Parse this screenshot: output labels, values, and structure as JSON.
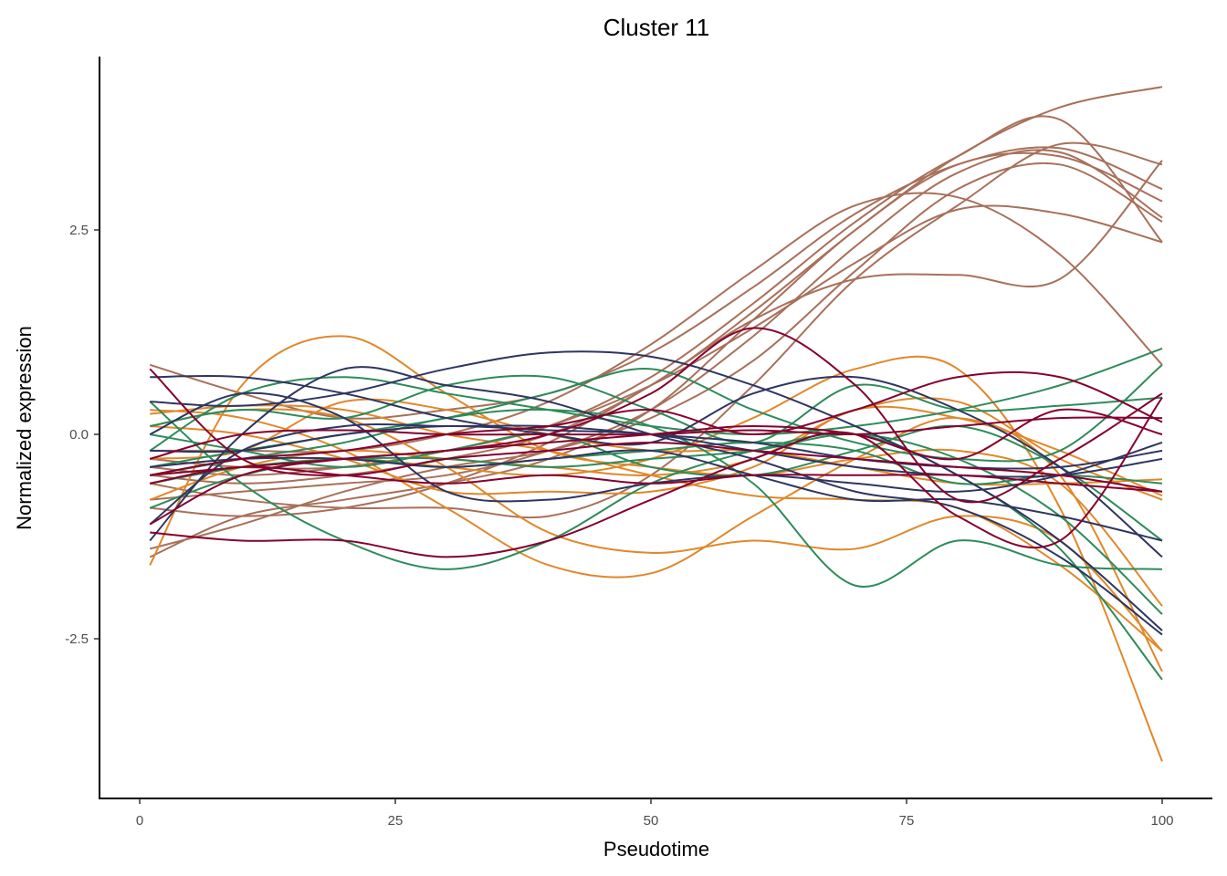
{
  "chart_data": {
    "type": "line",
    "title": "Cluster 11",
    "xlabel": "Pseudotime",
    "ylabel": "Normalized expression",
    "xlim": [
      0,
      100
    ],
    "ylim": [
      -4.3,
      4.4
    ],
    "xticks": [
      "0",
      "25",
      "50",
      "75",
      "100"
    ],
    "xtick_values": [
      0,
      25,
      50,
      75,
      100
    ],
    "yticks": [
      "-2.5",
      "0.0",
      "2.5"
    ],
    "ytick_values": [
      -2.5,
      0,
      2.5
    ],
    "grid": false,
    "legend": "none",
    "colors": {
      "brown": "#A8705A",
      "orange": "#E0882A",
      "green": "#2E8B5A",
      "navy": "#2E3560",
      "crimson": "#85002E"
    },
    "x": [
      1,
      10,
      20,
      30,
      40,
      50,
      60,
      70,
      80,
      90,
      100
    ],
    "series": [
      {
        "color": "brown",
        "values": [
          -0.5,
          -0.6,
          -0.5,
          -0.3,
          0.0,
          0.6,
          1.5,
          2.5,
          3.4,
          4.0,
          4.25
        ]
      },
      {
        "color": "brown",
        "values": [
          -0.3,
          -0.4,
          -0.4,
          -0.2,
          0.1,
          0.7,
          1.6,
          2.6,
          3.4,
          3.85,
          2.35
        ]
      },
      {
        "color": "brown",
        "values": [
          -0.9,
          -1.0,
          -0.9,
          -0.6,
          -0.1,
          0.6,
          1.4,
          1.9,
          1.95,
          1.9,
          3.35
        ]
      },
      {
        "color": "brown",
        "values": [
          -0.2,
          -0.2,
          -0.2,
          0.0,
          0.4,
          1.1,
          2.0,
          2.8,
          2.9,
          2.2,
          0.85
        ]
      },
      {
        "color": "brown",
        "values": [
          -0.4,
          -0.5,
          -0.4,
          -0.2,
          0.1,
          0.6,
          1.3,
          2.1,
          2.75,
          2.7,
          2.35
        ]
      },
      {
        "color": "brown",
        "values": [
          -1.5,
          -1.0,
          -0.8,
          -0.6,
          -0.3,
          0.3,
          1.4,
          2.5,
          3.3,
          3.4,
          2.85
        ]
      },
      {
        "color": "brown",
        "values": [
          0.85,
          0.5,
          0.2,
          0.3,
          0.5,
          1.0,
          1.8,
          2.7,
          3.3,
          3.5,
          3.0
        ]
      },
      {
        "color": "brown",
        "values": [
          -0.8,
          -0.7,
          -0.6,
          -0.5,
          -0.2,
          0.3,
          1.2,
          2.3,
          3.2,
          3.45,
          2.65
        ]
      },
      {
        "color": "brown",
        "values": [
          -1.4,
          -1.1,
          -0.7,
          -0.4,
          -0.2,
          0.2,
          0.9,
          2.0,
          3.0,
          3.3,
          2.6
        ]
      },
      {
        "color": "brown",
        "values": [
          -0.6,
          -0.8,
          -0.9,
          -0.9,
          -1.0,
          -0.5,
          0.6,
          1.9,
          2.8,
          3.55,
          3.3
        ]
      },
      {
        "color": "orange",
        "values": [
          -1.6,
          0.6,
          1.2,
          0.5,
          -0.2,
          -0.4,
          -0.5,
          -0.3,
          -0.2,
          -0.6,
          -2.1
        ]
      },
      {
        "color": "orange",
        "values": [
          0.3,
          0.2,
          -0.2,
          -0.9,
          -1.6,
          -1.7,
          -1.0,
          -0.3,
          0.2,
          -0.5,
          -2.9
        ]
      },
      {
        "color": "orange",
        "values": [
          0.1,
          0.3,
          0.2,
          -0.4,
          -1.2,
          -1.45,
          -1.3,
          -1.4,
          -1.0,
          -1.3,
          -2.65
        ]
      },
      {
        "color": "orange",
        "values": [
          -0.5,
          -0.4,
          -0.3,
          -0.4,
          -0.5,
          -0.3,
          0.2,
          0.8,
          0.8,
          -0.9,
          -4.0
        ]
      },
      {
        "color": "orange",
        "values": [
          -0.8,
          -0.4,
          -0.2,
          -0.3,
          -0.4,
          -0.5,
          -0.3,
          0.3,
          0.4,
          -0.3,
          -0.8
        ]
      },
      {
        "color": "orange",
        "values": [
          0.25,
          0.35,
          0.3,
          0.0,
          -0.2,
          -0.5,
          -0.75,
          -0.8,
          -0.9,
          -1.6,
          -2.65
        ]
      },
      {
        "color": "orange",
        "values": [
          -0.3,
          -0.2,
          0.4,
          0.3,
          0.0,
          -0.2,
          -0.2,
          -0.4,
          -0.6,
          -0.6,
          -0.55
        ]
      },
      {
        "color": "orange",
        "values": [
          0.1,
          0.0,
          -0.3,
          -0.7,
          -0.7,
          -0.7,
          -0.4,
          0.3,
          0.2,
          -0.2,
          -0.75
        ]
      },
      {
        "color": "green",
        "values": [
          0.4,
          -0.6,
          -1.3,
          -1.65,
          -1.3,
          -0.6,
          -0.2,
          0.0,
          -0.5,
          -1.4,
          -3.0
        ]
      },
      {
        "color": "green",
        "values": [
          -0.5,
          -0.3,
          -0.1,
          0.2,
          0.3,
          0.1,
          -0.6,
          -1.85,
          -1.3,
          -1.6,
          -1.65
        ]
      },
      {
        "color": "green",
        "values": [
          -0.2,
          0.5,
          0.7,
          0.5,
          0.3,
          0.1,
          0.0,
          0.1,
          0.3,
          0.6,
          1.05
        ]
      },
      {
        "color": "green",
        "values": [
          -0.4,
          -0.2,
          0.0,
          0.2,
          0.5,
          0.8,
          0.3,
          -0.1,
          -0.3,
          -0.2,
          0.85
        ]
      },
      {
        "color": "green",
        "values": [
          0.1,
          0.3,
          0.2,
          0.6,
          0.7,
          0.3,
          -0.1,
          0.6,
          0.3,
          0.35,
          0.45
        ]
      },
      {
        "color": "green",
        "values": [
          -0.6,
          -0.4,
          -0.3,
          -0.3,
          -0.4,
          -0.3,
          -0.2,
          0.0,
          -0.3,
          -1.0,
          -2.2
        ]
      },
      {
        "color": "green",
        "values": [
          0.0,
          -0.2,
          -0.4,
          -0.2,
          0.0,
          -0.4,
          -0.5,
          -0.2,
          0.1,
          -0.4,
          -1.3
        ]
      },
      {
        "color": "green",
        "values": [
          -0.9,
          -0.5,
          -0.3,
          -0.4,
          -0.3,
          -0.2,
          -0.1,
          -0.2,
          -0.6,
          -0.5,
          -0.6
        ]
      },
      {
        "color": "navy",
        "values": [
          0.4,
          0.35,
          0.5,
          0.8,
          1.0,
          0.95,
          0.6,
          0.1,
          -0.5,
          -1.3,
          -2.4
        ]
      },
      {
        "color": "navy",
        "values": [
          0.7,
          0.7,
          0.5,
          0.2,
          0.0,
          -0.1,
          0.5,
          0.7,
          0.3,
          -0.4,
          -1.5
        ]
      },
      {
        "color": "navy",
        "values": [
          -1.3,
          0.0,
          0.8,
          0.6,
          0.4,
          0.0,
          -0.3,
          -0.7,
          -0.9,
          -1.5,
          -2.45
        ]
      },
      {
        "color": "navy",
        "values": [
          -0.2,
          -0.2,
          0.0,
          0.1,
          0.05,
          0.0,
          -0.2,
          -0.4,
          -0.5,
          -0.5,
          -0.3
        ]
      },
      {
        "color": "navy",
        "values": [
          0.0,
          0.5,
          0.2,
          -0.7,
          -0.8,
          -0.6,
          -0.5,
          -0.6,
          -0.7,
          -0.5,
          -0.1
        ]
      },
      {
        "color": "navy",
        "values": [
          -0.4,
          -0.3,
          -0.3,
          -0.4,
          -0.3,
          -0.2,
          -0.5,
          -0.8,
          -0.8,
          -1.0,
          -1.3
        ]
      },
      {
        "color": "navy",
        "values": [
          -1.1,
          -0.2,
          0.1,
          0.1,
          0.1,
          0.0,
          -0.1,
          -0.3,
          -0.4,
          -0.4,
          -0.2
        ]
      },
      {
        "color": "crimson",
        "values": [
          -1.1,
          -0.5,
          -0.3,
          -0.2,
          0.0,
          0.5,
          1.3,
          0.6,
          -0.8,
          -0.3,
          0.5
        ]
      },
      {
        "color": "crimson",
        "values": [
          -1.2,
          -1.3,
          -1.3,
          -1.5,
          -1.3,
          -0.8,
          -0.3,
          0.0,
          -1.0,
          -1.3,
          0.45
        ]
      },
      {
        "color": "crimson",
        "values": [
          -0.5,
          -0.3,
          -0.2,
          0.0,
          0.1,
          0.3,
          0.0,
          0.3,
          0.7,
          0.7,
          0.15
        ]
      },
      {
        "color": "crimson",
        "values": [
          0.8,
          -0.3,
          -0.5,
          -0.3,
          -0.2,
          -0.1,
          -0.2,
          -0.3,
          -0.4,
          -0.5,
          -0.7
        ]
      },
      {
        "color": "crimson",
        "values": [
          -0.6,
          -0.4,
          -0.5,
          -0.6,
          -0.5,
          -0.6,
          -0.5,
          -0.5,
          -0.5,
          -0.6,
          -0.7
        ]
      },
      {
        "color": "crimson",
        "values": [
          -0.3,
          0.0,
          0.05,
          0.0,
          0.0,
          0.0,
          0.05,
          0.0,
          0.1,
          0.2,
          0.2
        ]
      },
      {
        "color": "crimson",
        "values": [
          -0.5,
          -0.4,
          -0.3,
          -0.2,
          -0.1,
          0.0,
          0.1,
          0.0,
          -0.3,
          0.3,
          0.0
        ]
      }
    ]
  }
}
